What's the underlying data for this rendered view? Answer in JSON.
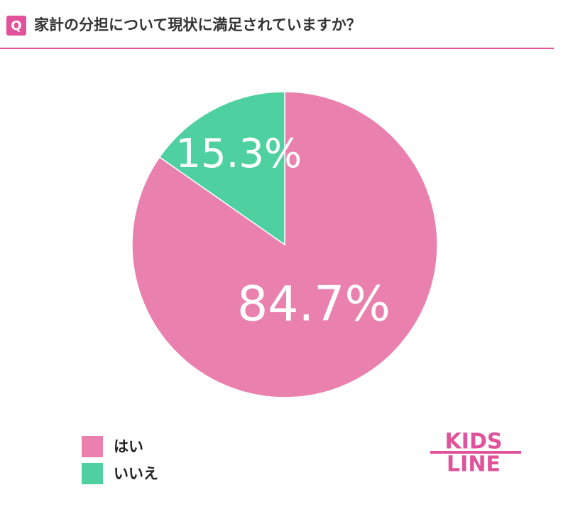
{
  "header": {
    "badge": "Q"
  },
  "chart_data": {
    "type": "pie",
    "title": "家計の分担について現状に満足されていますか？",
    "categories": [
      "はい",
      "いいえ"
    ],
    "values": [
      84.7,
      15.3
    ],
    "value_labels": [
      "84.7%",
      "15.3%"
    ],
    "colors": [
      "#ea80ae",
      "#4fd0a0"
    ]
  },
  "logo": {
    "line1": "KIDS",
    "line2": "LINE"
  }
}
